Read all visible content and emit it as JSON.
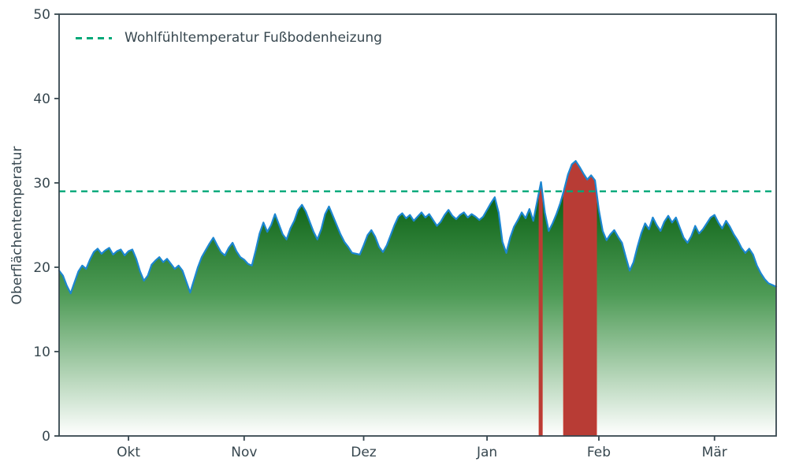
{
  "chart_data": {
    "type": "area",
    "title": "",
    "xlabel": "",
    "ylabel": "Oberflächentemperatur",
    "ylim": [
      0,
      50
    ],
    "yticks": [
      0,
      10,
      20,
      30,
      40,
      50
    ],
    "x_tick_labels": [
      "Okt",
      "Nov",
      "Dez",
      "Jan",
      "Feb",
      "Mär"
    ],
    "x_tick_positions": [
      18,
      48,
      79,
      111,
      140,
      170
    ],
    "grid": false,
    "legend_position": "upper-left",
    "threshold": {
      "value": 29,
      "label": "Wohlfühltemperatur Fußbodenheizung",
      "color": "#00a878",
      "style": "dashed"
    },
    "colors": {
      "line": "#1c86d1",
      "area_gradient_top": "#0e6418",
      "area_gradient_mid": "#4e9b56",
      "area_gradient_bottom": "#ffffff",
      "exceedance_fill": "#b83c35",
      "exceedance_edge": "#c63a30",
      "frame": "#37474f",
      "text": "#37474f",
      "background": "#ffffff"
    },
    "series": [
      {
        "name": "Oberflächentemperatur",
        "values": [
          19.6,
          19.0,
          17.8,
          16.9,
          18.2,
          19.5,
          20.2,
          19.8,
          20.9,
          21.8,
          22.2,
          21.6,
          22.0,
          22.3,
          21.5,
          21.9,
          22.1,
          21.4,
          21.9,
          22.1,
          21.0,
          19.5,
          18.4,
          19.0,
          20.3,
          20.8,
          21.2,
          20.6,
          21.0,
          20.4,
          19.8,
          20.2,
          19.6,
          18.3,
          17.0,
          18.5,
          20.0,
          21.2,
          22.0,
          22.8,
          23.5,
          22.6,
          21.8,
          21.4,
          22.3,
          22.9,
          21.9,
          21.2,
          20.9,
          20.4,
          20.2,
          22.0,
          24.0,
          25.3,
          24.2,
          25.0,
          26.3,
          25.1,
          23.9,
          23.3,
          24.6,
          25.5,
          26.8,
          27.4,
          26.6,
          25.4,
          24.2,
          23.3,
          24.5,
          26.3,
          27.2,
          26.1,
          25.0,
          23.9,
          23.0,
          22.4,
          21.7,
          21.6,
          21.5,
          22.6,
          23.8,
          24.4,
          23.6,
          22.4,
          21.8,
          22.6,
          23.8,
          25.0,
          26.0,
          26.4,
          25.8,
          26.2,
          25.5,
          26.0,
          26.5,
          25.9,
          26.3,
          25.6,
          24.9,
          25.4,
          26.2,
          26.8,
          26.1,
          25.7,
          26.2,
          26.5,
          25.9,
          26.3,
          26.0,
          25.6,
          26.0,
          26.8,
          27.6,
          28.3,
          26.5,
          23.0,
          21.7,
          23.5,
          24.8,
          25.6,
          26.5,
          25.8,
          26.9,
          25.5,
          27.8,
          30.1,
          26.5,
          24.3,
          25.2,
          26.3,
          27.6,
          29.2,
          31.0,
          32.2,
          32.6,
          31.9,
          31.1,
          30.4,
          30.9,
          30.3,
          26.8,
          24.3,
          23.2,
          23.9,
          24.4,
          23.6,
          22.9,
          21.2,
          19.6,
          20.6,
          22.4,
          24.0,
          25.2,
          24.5,
          25.9,
          25.0,
          24.3,
          25.4,
          26.1,
          25.3,
          25.9,
          24.7,
          23.5,
          22.9,
          23.7,
          24.9,
          24.0,
          24.5,
          25.2,
          25.9,
          26.2,
          25.3,
          24.6,
          25.5,
          24.8,
          23.9,
          23.2,
          22.3,
          21.7,
          22.2,
          21.5,
          20.2,
          19.3,
          18.6,
          18.1,
          17.9,
          17.7
        ]
      }
    ]
  }
}
